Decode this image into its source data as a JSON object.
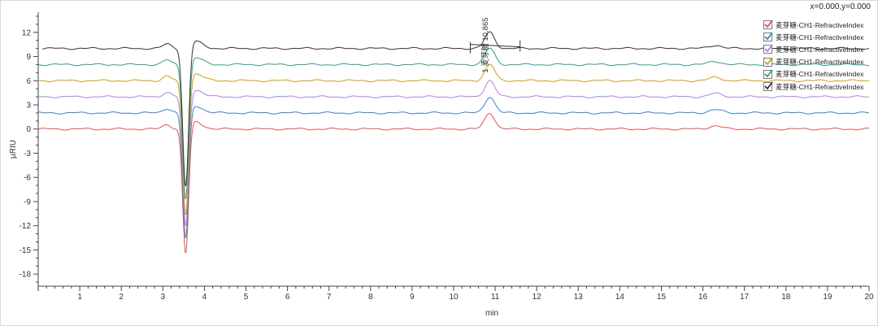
{
  "readout": "x=0.000,y=0.000",
  "chart_data": {
    "type": "line",
    "xlabel": "min",
    "ylabel": "µRIU",
    "xlim": [
      0,
      20
    ],
    "ylim": [
      -19.5,
      14.5
    ],
    "xticks": [
      1,
      2,
      3,
      4,
      5,
      6,
      7,
      8,
      9,
      10,
      11,
      12,
      13,
      14,
      15,
      16,
      17,
      18,
      19,
      20
    ],
    "yticks": [
      12,
      9,
      6,
      3,
      0,
      -3,
      -6,
      -9,
      -12,
      -15,
      -18
    ],
    "grid": false,
    "legend_position": "top-right",
    "series": [
      {
        "name": "麦芽糖-CH1-RefractiveIndex",
        "color": "#e05050",
        "offset": 0,
        "dip_min": -16.8,
        "peak_height": 2.0
      },
      {
        "name": "麦芽糖-CH1-RefractiveIndex",
        "color": "#3a7fc8",
        "offset": 2,
        "dip_min": -15.0,
        "peak_height": 2.0
      },
      {
        "name": "麦芽糖-CH1-RefractiveIndex",
        "color": "#b080d8",
        "offset": 4,
        "dip_min": -13.5,
        "peak_height": 2.0
      },
      {
        "name": "麦芽糖-CH1-RefractiveIndex",
        "color": "#c8a010",
        "offset": 6,
        "dip_min": -12.0,
        "peak_height": 2.0
      },
      {
        "name": "麦芽糖-CH1-RefractiveIndex",
        "color": "#30a080",
        "offset": 8,
        "dip_min": -10.0,
        "peak_height": 2.0
      },
      {
        "name": "麦芽糖-CH1-RefractiveIndex",
        "color": "#333333",
        "offset": 10,
        "dip_min": -8.5,
        "peak_height": 2.0
      }
    ],
    "peak_rt": 10.87,
    "dip_rt": 3.55,
    "minor_peak_rt": 16.3,
    "annotations": [
      {
        "text": "1 麦芽糖 10.865",
        "x": 10.865
      }
    ]
  }
}
